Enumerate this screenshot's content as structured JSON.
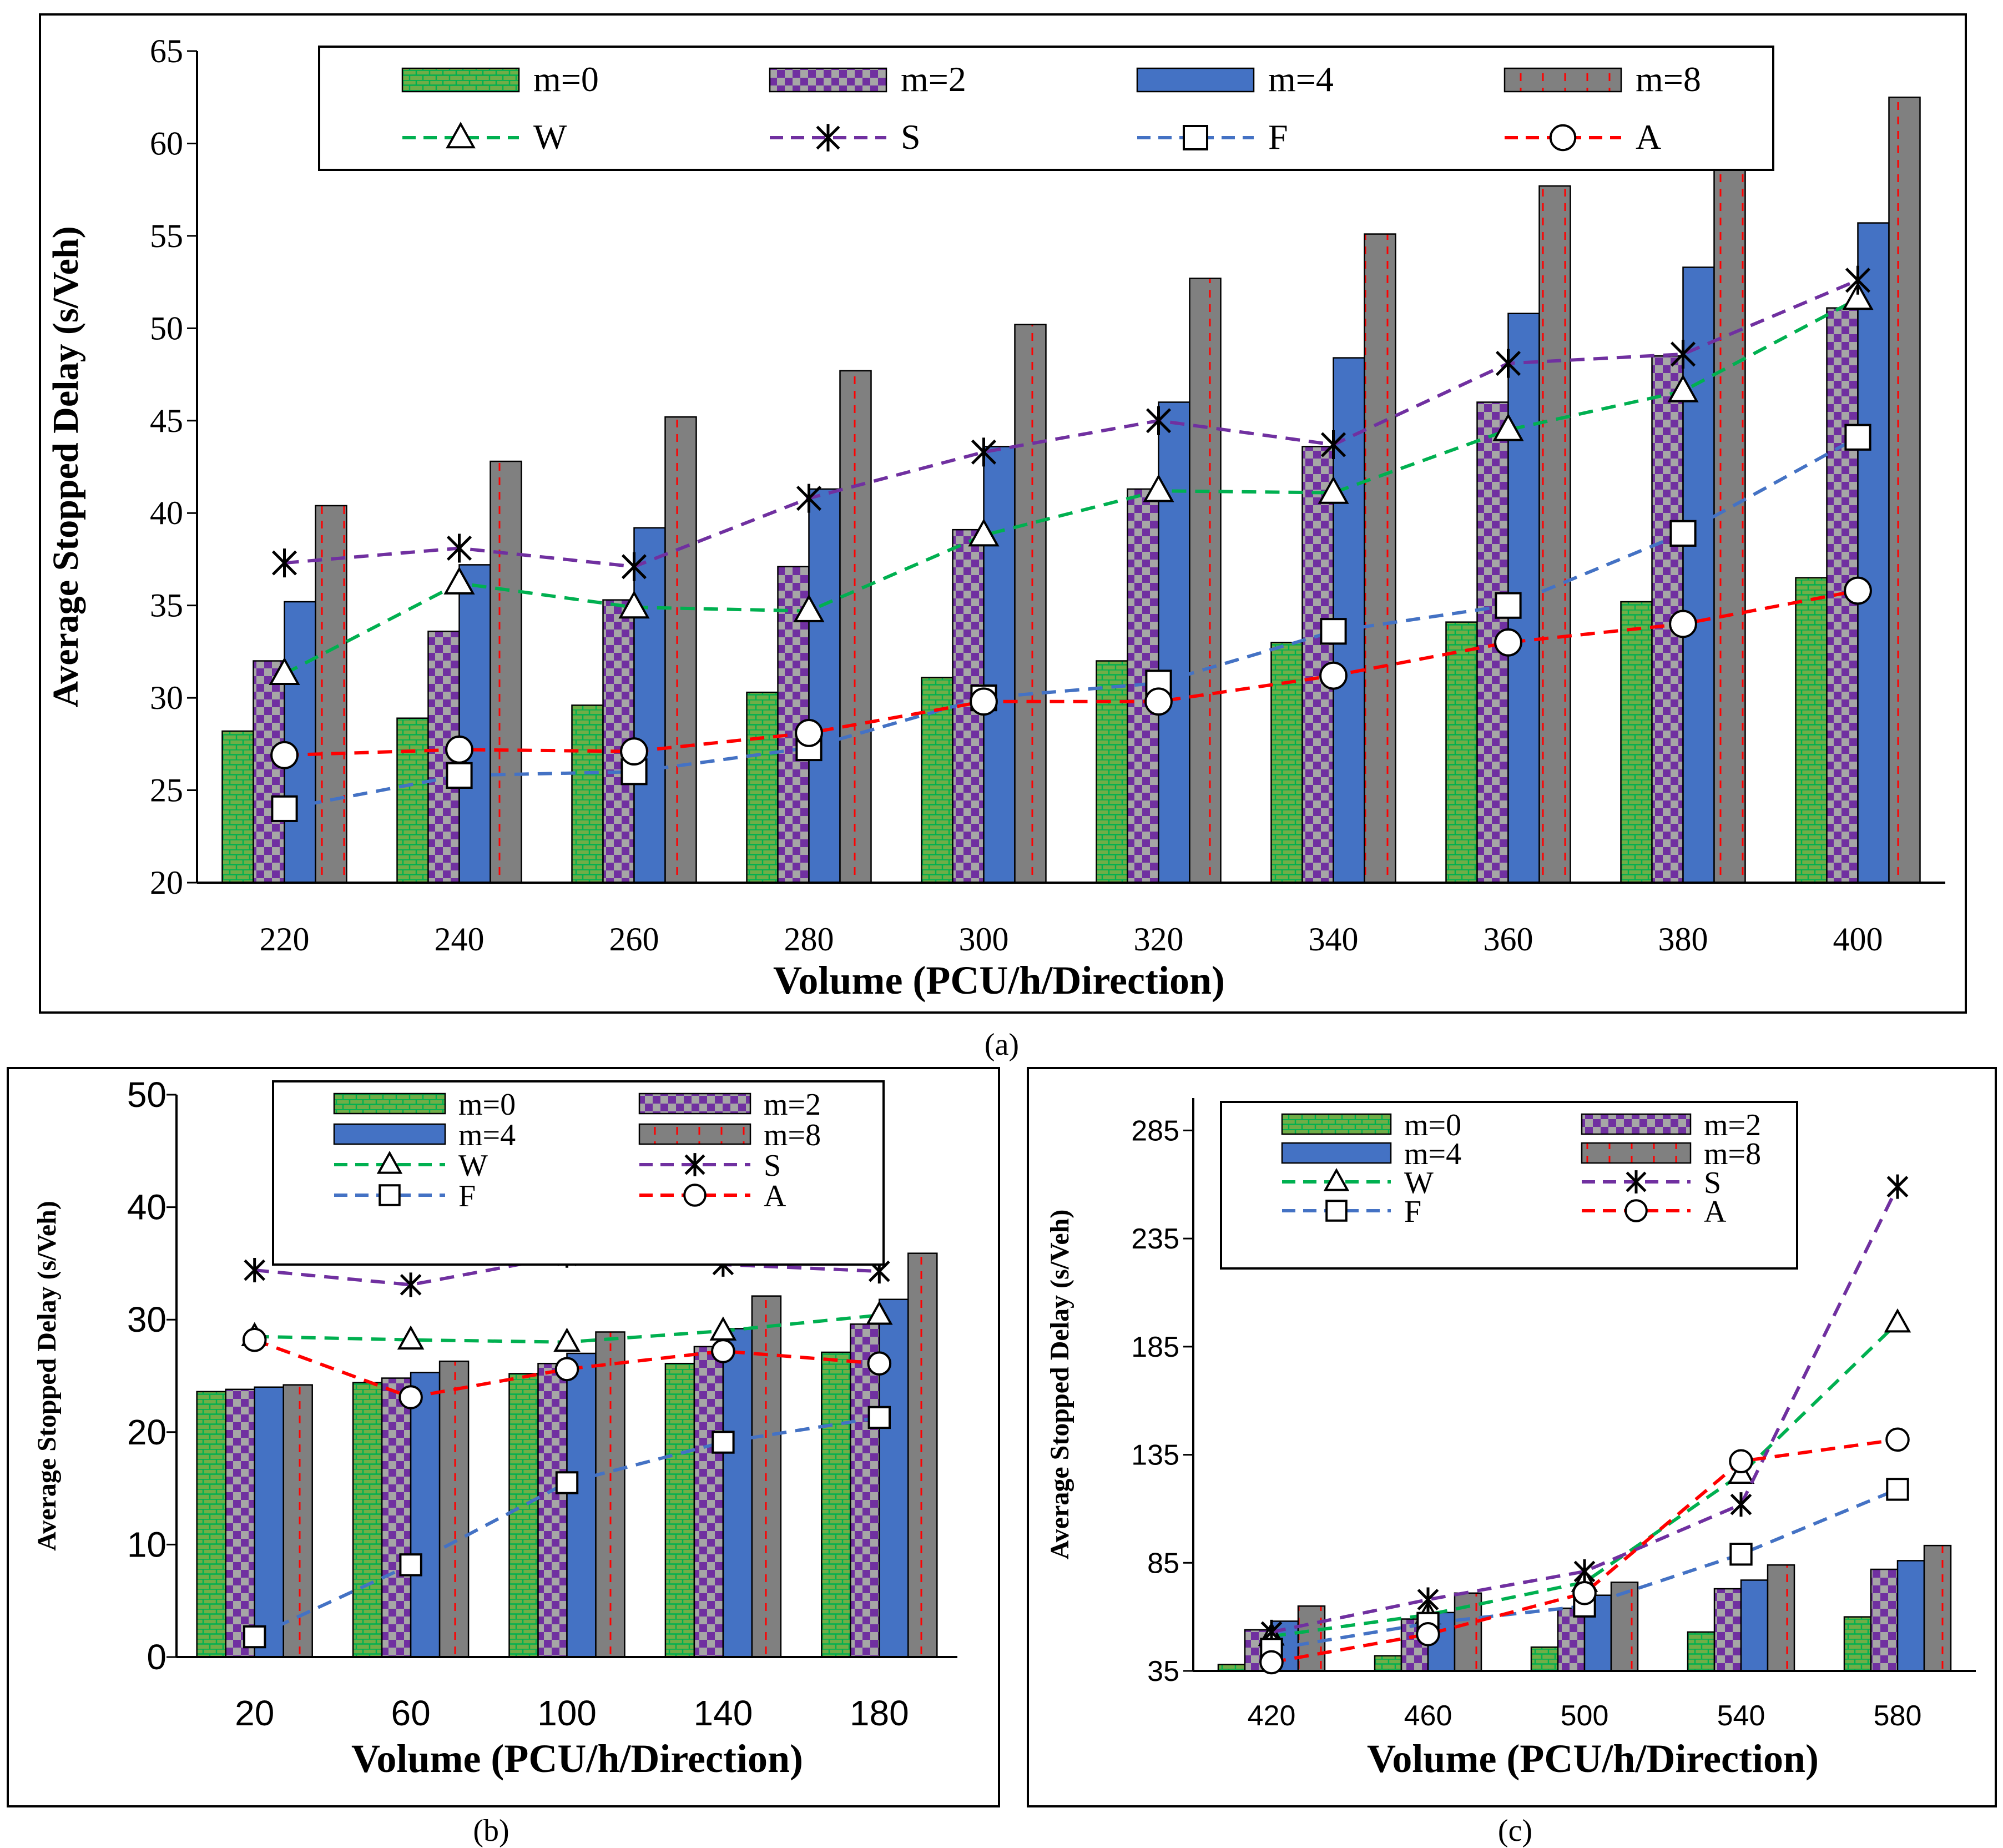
{
  "colors": {
    "m0_fill": "#70AD47",
    "m0_brick": "#00B050",
    "m2_fill": "#7030A0",
    "m2_check": "#A6A6A6",
    "m4_fill": "#4472C4",
    "m8_fill": "#808080",
    "m8_dash": "#FF0000",
    "W": "#00B050",
    "S": "#7030A0",
    "F": "#4472C4",
    "A": "#FF0000"
  },
  "chart_data": [
    {
      "id": "a",
      "type": "bar",
      "caption": "(a)",
      "title": "",
      "xlabel": "Volume (PCU/h/Direction)",
      "ylabel": "Average Stopped Delay (s/Veh)",
      "ylim": [
        20,
        65
      ],
      "yticks": [
        20,
        25,
        30,
        35,
        40,
        45,
        50,
        55,
        60,
        65
      ],
      "legend_position": "top",
      "categories": [
        "220",
        "240",
        "260",
        "280",
        "300",
        "320",
        "340",
        "360",
        "380",
        "400"
      ],
      "series": [
        {
          "name": "m=0",
          "kind": "bar",
          "style": "m0",
          "values": [
            28.2,
            28.9,
            29.6,
            30.3,
            31.1,
            32.0,
            33.0,
            34.1,
            35.2,
            36.5
          ]
        },
        {
          "name": "m=2",
          "kind": "bar",
          "style": "m2",
          "values": [
            32.0,
            33.6,
            35.3,
            37.1,
            39.1,
            41.3,
            43.6,
            46.0,
            48.5,
            51.1
          ]
        },
        {
          "name": "m=4",
          "kind": "bar",
          "style": "m4",
          "values": [
            35.2,
            37.2,
            39.2,
            41.3,
            43.6,
            46.0,
            48.4,
            50.8,
            53.3,
            55.7
          ]
        },
        {
          "name": "m=8",
          "kind": "bar",
          "style": "m8",
          "values": [
            40.4,
            42.8,
            45.2,
            47.7,
            50.2,
            52.7,
            55.1,
            57.7,
            60.0,
            62.5
          ]
        },
        {
          "name": "W",
          "kind": "line",
          "marker": "triangle",
          "color": "#00B050",
          "values": [
            31.3,
            36.2,
            34.9,
            34.7,
            38.8,
            41.2,
            41.1,
            44.5,
            46.6,
            51.6
          ]
        },
        {
          "name": "S",
          "kind": "line",
          "marker": "star",
          "color": "#7030A0",
          "values": [
            37.3,
            38.1,
            37.1,
            40.8,
            43.3,
            45.0,
            43.7,
            48.1,
            48.6,
            52.6
          ]
        },
        {
          "name": "F",
          "kind": "line",
          "marker": "square",
          "color": "#4472C4",
          "values": [
            24.0,
            25.8,
            26.0,
            27.3,
            30.0,
            30.8,
            33.6,
            35.0,
            38.9,
            44.1
          ]
        },
        {
          "name": "A",
          "kind": "line",
          "marker": "circle",
          "color": "#FF0000",
          "values": [
            26.9,
            27.2,
            27.1,
            28.1,
            29.8,
            29.8,
            31.2,
            33.0,
            34.0,
            35.8
          ]
        }
      ]
    },
    {
      "id": "b",
      "type": "bar",
      "caption": "(b)",
      "title": "",
      "xlabel": "Volume (PCU/h/Direction)",
      "ylabel": "Average Stopped Delay (s/Veh)",
      "ylim": [
        0,
        50
      ],
      "yticks": [
        0,
        10,
        20,
        30,
        40,
        50
      ],
      "legend_position": "top-right",
      "categories": [
        "20",
        "60",
        "100",
        "140",
        "180"
      ],
      "series": [
        {
          "name": "m=0",
          "kind": "bar",
          "style": "m0",
          "values": [
            23.6,
            24.4,
            25.2,
            26.1,
            27.1
          ]
        },
        {
          "name": "m=2",
          "kind": "bar",
          "style": "m2",
          "values": [
            23.8,
            24.8,
            26.1,
            27.6,
            29.6
          ]
        },
        {
          "name": "m=4",
          "kind": "bar",
          "style": "m4",
          "values": [
            24.0,
            25.3,
            27.0,
            29.2,
            31.8
          ]
        },
        {
          "name": "m=8",
          "kind": "bar",
          "style": "m8",
          "values": [
            24.2,
            26.3,
            28.9,
            32.1,
            35.9
          ]
        },
        {
          "name": "W",
          "kind": "line",
          "marker": "triangle",
          "color": "#00B050",
          "values": [
            28.5,
            28.2,
            28.0,
            29.0,
            30.4
          ]
        },
        {
          "name": "S",
          "kind": "line",
          "marker": "star",
          "color": "#7030A0",
          "values": [
            34.4,
            33.1,
            35.7,
            34.9,
            34.3
          ]
        },
        {
          "name": "F",
          "kind": "line",
          "marker": "square",
          "color": "#4472C4",
          "values": [
            1.8,
            8.2,
            15.5,
            19.1,
            21.3
          ]
        },
        {
          "name": "A",
          "kind": "line",
          "marker": "circle",
          "color": "#FF0000",
          "values": [
            28.2,
            23.1,
            25.6,
            27.2,
            26.1
          ]
        }
      ]
    },
    {
      "id": "c",
      "type": "bar",
      "caption": "(c)",
      "title": "",
      "xlabel": "Volume (PCU/h/Direction)",
      "ylabel": "Average Stopped Delay (s/Veh)",
      "ylim": [
        35,
        300
      ],
      "yticks": [
        35,
        85,
        135,
        185,
        235,
        285
      ],
      "legend_position": "top",
      "categories": [
        "420",
        "460",
        "500",
        "540",
        "580"
      ],
      "series": [
        {
          "name": "m=0",
          "kind": "bar",
          "style": "m0",
          "values": [
            38,
            42,
            46,
            53,
            60
          ]
        },
        {
          "name": "m=2",
          "kind": "bar",
          "style": "m2",
          "values": [
            54,
            59,
            64,
            73,
            82
          ]
        },
        {
          "name": "m=4",
          "kind": "bar",
          "style": "m4",
          "values": [
            58,
            62,
            70,
            77,
            86
          ]
        },
        {
          "name": "m=8",
          "kind": "bar",
          "style": "m8",
          "values": [
            65,
            71,
            76,
            84,
            93
          ]
        },
        {
          "name": "W",
          "kind": "line",
          "marker": "triangle",
          "color": "#00B050",
          "values": [
            51,
            61,
            76,
            126,
            196
          ]
        },
        {
          "name": "S",
          "kind": "line",
          "marker": "star",
          "color": "#7030A0",
          "values": [
            53,
            68,
            81,
            112,
            259
          ]
        },
        {
          "name": "F",
          "kind": "line",
          "marker": "square",
          "color": "#4472C4",
          "values": [
            45,
            57,
            65,
            89,
            119
          ]
        },
        {
          "name": "A",
          "kind": "line",
          "marker": "circle",
          "color": "#FF0000",
          "values": [
            39,
            52,
            71,
            132,
            142
          ]
        }
      ]
    }
  ]
}
